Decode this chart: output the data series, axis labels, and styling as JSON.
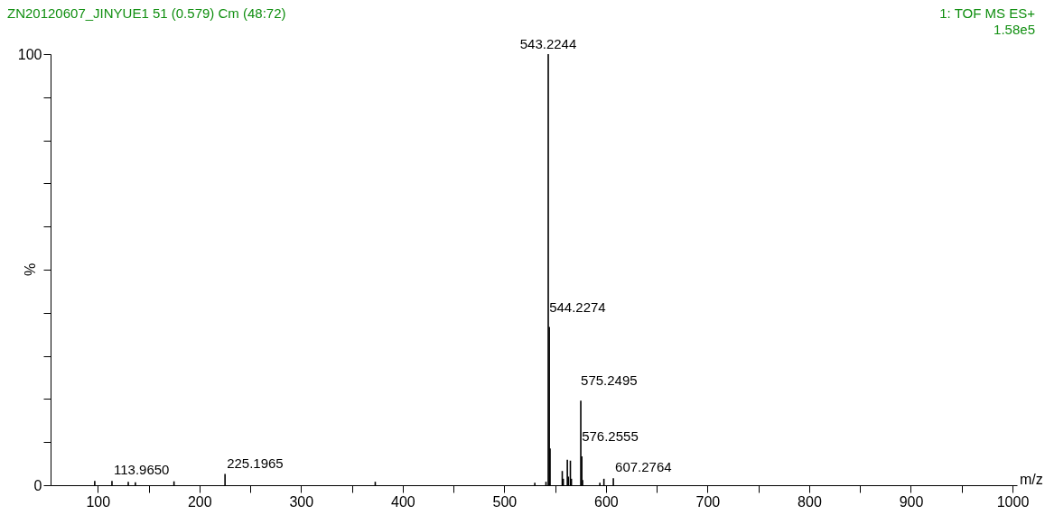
{
  "chart_data": {
    "type": "bar",
    "title": "ZN20120607_JINYUE1 51 (0.579) Cm (48:72)",
    "subtitle": "1: TOF MS ES+ 1.58e5",
    "xlabel": "m/z",
    "ylabel": "%",
    "x": [
      97,
      113.965,
      130,
      137,
      175,
      225.1965,
      373,
      530,
      541,
      543.2244,
      544.2274,
      545,
      557,
      558,
      562,
      563,
      565,
      566,
      575.2495,
      576.2555,
      577,
      594,
      598,
      607.2764
    ],
    "series": [
      {
        "color": "#000000",
        "values": [
          1.0,
          1.0,
          0.8,
          0.7,
          0.9,
          2.6,
          0.8,
          0.6,
          0.8,
          100,
          36.7,
          8.5,
          3.3,
          1.5,
          5.9,
          2.0,
          5.7,
          1.5,
          19.6,
          6.7,
          1.2,
          0.6,
          1.5,
          1.6
        ]
      }
    ],
    "xlim": [
      58,
      1000
    ],
    "ylim": [
      0,
      100
    ],
    "xticks": [
      100,
      {
        "value": 150,
        "label": null
      },
      200,
      {
        "value": 250,
        "label": null
      },
      300,
      {
        "value": 350,
        "label": null
      },
      400,
      {
        "value": 450,
        "label": null
      },
      500,
      {
        "value": 550,
        "label": null
      },
      600,
      {
        "value": 650,
        "label": null
      },
      700,
      {
        "value": 750,
        "label": null
      },
      800,
      {
        "value": 850,
        "label": null
      },
      900,
      {
        "value": 950,
        "label": null
      },
      1000
    ],
    "yticks": [
      0,
      {
        "value": 10,
        "label": null
      },
      {
        "value": 20,
        "label": null
      },
      {
        "value": 30,
        "label": null
      },
      {
        "value": 40,
        "label": null
      },
      {
        "value": 50,
        "label": null
      },
      {
        "value": 60,
        "label": null
      },
      {
        "value": 70,
        "label": null
      },
      {
        "value": 80,
        "label": null
      },
      {
        "value": 90,
        "label": null
      },
      100
    ],
    "annotations": [
      {
        "text": "113.9650",
        "x": 113.965,
        "y": 1.0
      },
      {
        "text": "225.1965",
        "x": 225.1965,
        "y": 2.6
      },
      {
        "text": "543.2244",
        "x": 543.2244,
        "y": 100
      },
      {
        "text": "544.2274",
        "x": 544.2274,
        "y": 36.7
      },
      {
        "text": "575.2495",
        "x": 575.2495,
        "y": 19.6
      },
      {
        "text": "576.2555",
        "x": 576.2555,
        "y": 6.7
      },
      {
        "text": "607.2764",
        "x": 607.2764,
        "y": 1.6
      }
    ],
    "grid": false
  }
}
